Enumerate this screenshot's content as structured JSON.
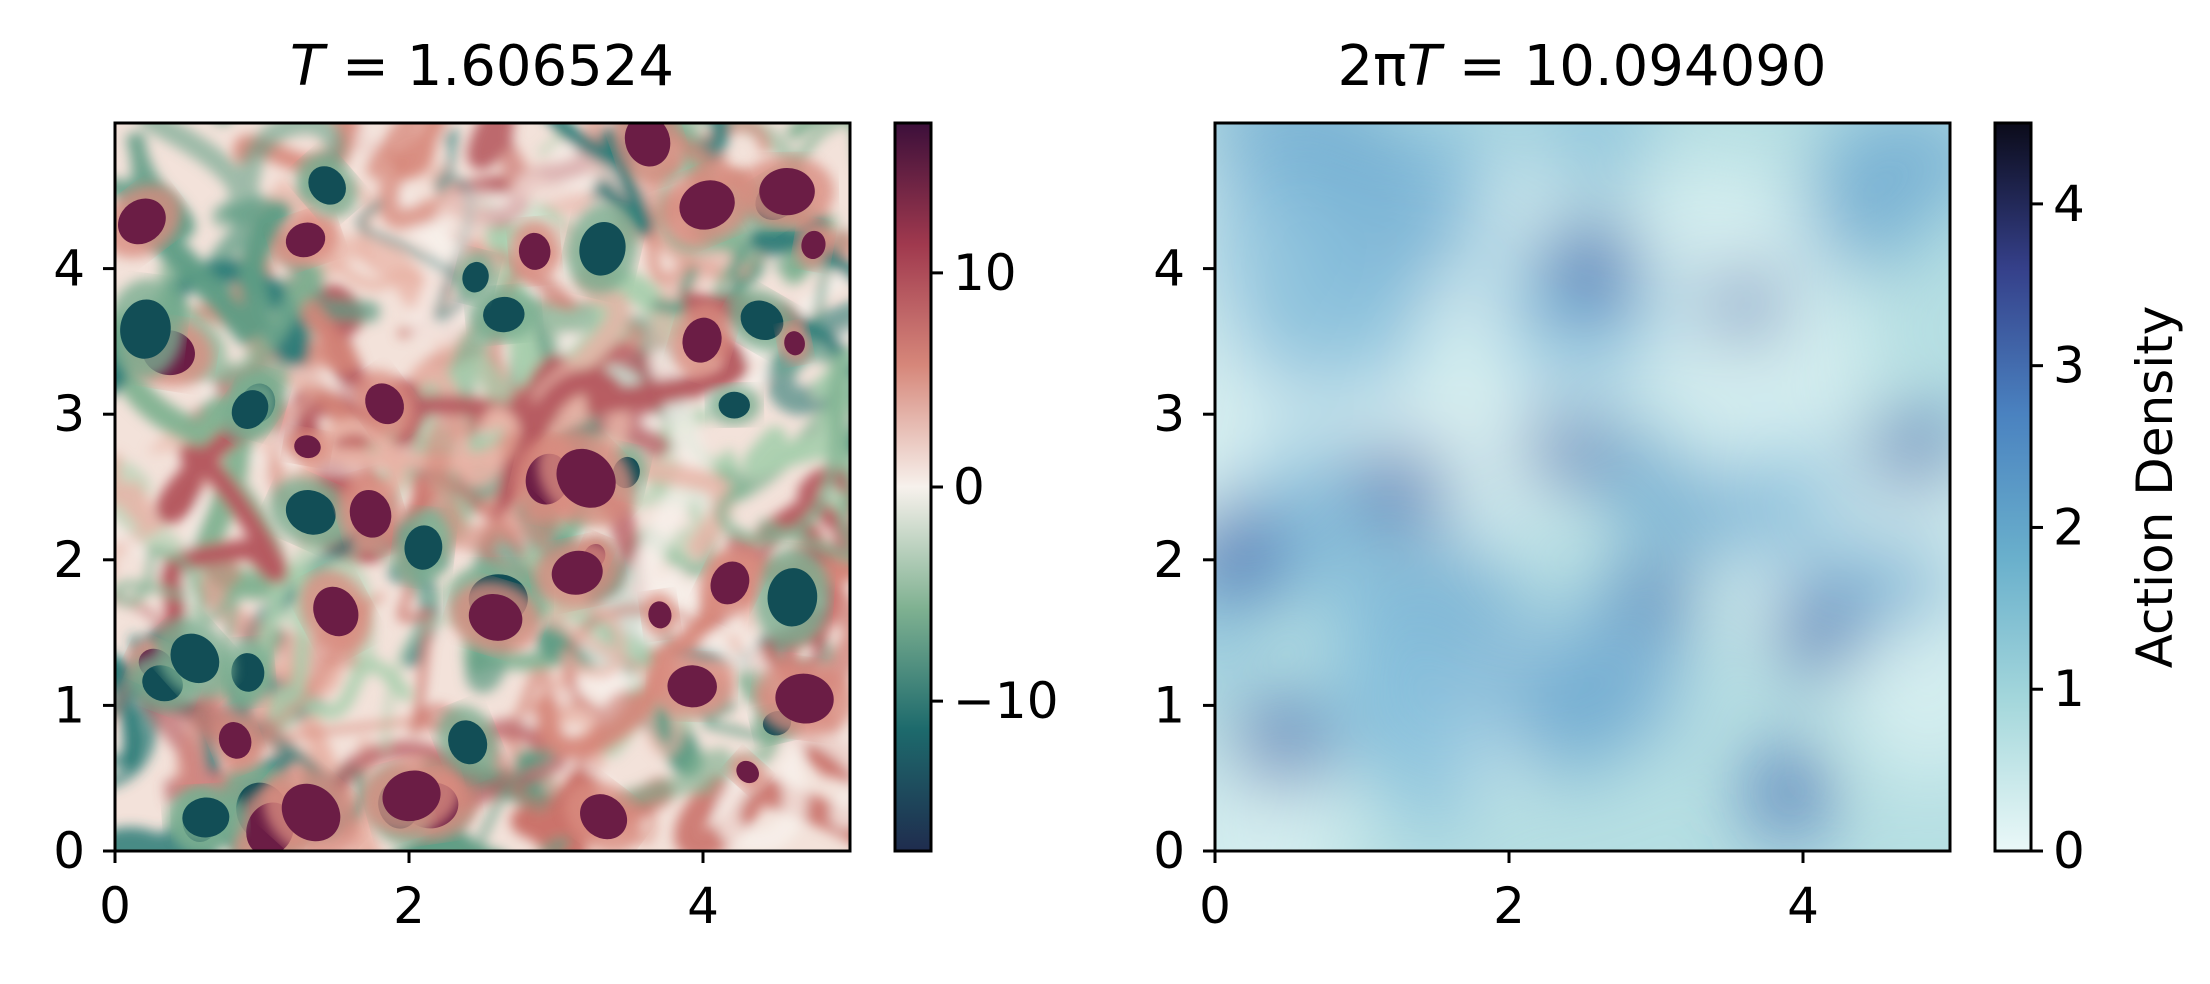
{
  "chart_data": [
    {
      "type": "heatmap",
      "title": "T = 1.606524",
      "title_parts": {
        "var": "T",
        "rest": " = 1.606524"
      },
      "xlim": [
        0,
        5
      ],
      "ylim": [
        0,
        5
      ],
      "x_ticks": [
        0,
        2,
        4
      ],
      "y_ticks": [
        0,
        1,
        2,
        3,
        4
      ],
      "x_tick_labels": [
        "0",
        "2",
        "4"
      ],
      "y_tick_labels": [
        "0",
        "1",
        "2",
        "3",
        "4"
      ],
      "grid": false,
      "colormap": "curl (teal-white-maroon, diverging)",
      "colorbar": {
        "range": [
          -17,
          17
        ],
        "ticks": [
          -10,
          0,
          10
        ],
        "tick_labels": [
          "−10",
          "0",
          "10"
        ],
        "label": "",
        "stops": [
          "#1f2c4e",
          "#1d6a6c",
          "#7fb191",
          "#f7f1ec",
          "#d6877a",
          "#a0394e",
          "#3c0f3a"
        ]
      },
      "description_of_field": "turbulent vorticity field with many coherent vortices"
    },
    {
      "type": "heatmap",
      "title": "2πT = 10.094090",
      "title_parts": {
        "prefix": "2π",
        "var": "T",
        "rest": " = 10.094090"
      },
      "xlim": [
        0,
        5
      ],
      "ylim": [
        0,
        5
      ],
      "x_ticks": [
        0,
        2,
        4
      ],
      "y_ticks": [
        0,
        1,
        2,
        3,
        4
      ],
      "x_tick_labels": [
        "0",
        "2",
        "4"
      ],
      "y_tick_labels": [
        "0",
        "1",
        "2",
        "3",
        "4"
      ],
      "grid": false,
      "colormap": "ice_r (light cyan to dark navy)",
      "colorbar": {
        "range": [
          0,
          4.5
        ],
        "ticks": [
          0,
          1,
          2,
          3,
          4
        ],
        "tick_labels": [
          "0",
          "1",
          "2",
          "3",
          "4"
        ],
        "label": "Action Density",
        "stops": [
          "#eaf8f8",
          "#a6d8dc",
          "#6ab0cc",
          "#4a82c0",
          "#35408a",
          "#0b0b1a"
        ]
      }
    }
  ]
}
